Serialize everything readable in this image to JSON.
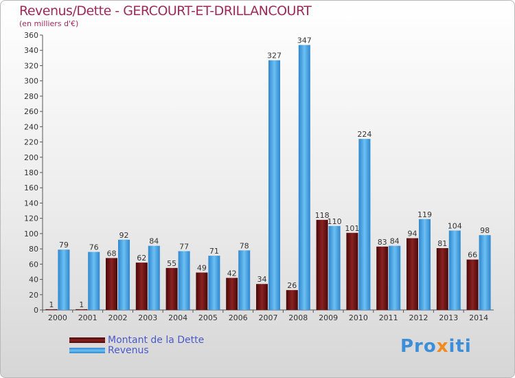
{
  "header": {
    "title": "Revenus/Dette - GERCOURT-ET-DRILLANCOURT",
    "subtitle": "(en milliers d'€)"
  },
  "colors": {
    "debt": "#6e0f0f",
    "revenue": "#3d9be0"
  },
  "legend": {
    "debt_label": "Montant de la Dette",
    "revenue_label": "Revenus"
  },
  "logo": {
    "part1": "Pro",
    "part2": "x",
    "part3": "iti"
  },
  "chart_data": {
    "type": "bar",
    "title": "Revenus/Dette - GERCOURT-ET-DRILLANCOURT",
    "ylabel": "(en milliers d'€)",
    "xlabel": "",
    "ylim": [
      0,
      360
    ],
    "ytick_step": 20,
    "grid": false,
    "legend_position": "bottom-left",
    "categories": [
      "2000",
      "2001",
      "2002",
      "2003",
      "2004",
      "2005",
      "2006",
      "2007",
      "2008",
      "2009",
      "2010",
      "2011",
      "2012",
      "2013",
      "2014"
    ],
    "series": [
      {
        "name": "Montant de la Dette",
        "values": [
          1,
          1,
          68,
          62,
          55,
          49,
          42,
          34,
          26,
          118,
          101,
          83,
          94,
          81,
          66
        ]
      },
      {
        "name": "Revenus",
        "values": [
          79,
          76,
          92,
          84,
          77,
          71,
          78,
          327,
          347,
          110,
          224,
          84,
          119,
          104,
          98
        ]
      }
    ]
  }
}
